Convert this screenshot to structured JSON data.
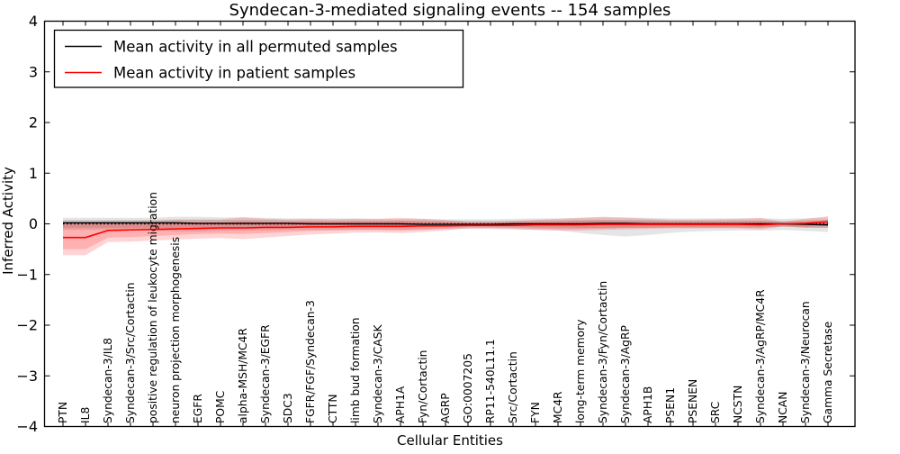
{
  "title": "Syndecan-3-mediated signaling events -- 154 samples",
  "axes": {
    "xlabel": "Cellular Entities",
    "ylabel": "Inferred Activity"
  },
  "legend": {
    "items": [
      {
        "label": "Mean activity in all permuted samples",
        "color": "#000000"
      },
      {
        "label": "Mean activity in patient samples",
        "color": "#ff0000"
      }
    ]
  },
  "colors": {
    "permuted_line": "#000000",
    "patient_line": "#ff0000",
    "permuted_band": "rgba(0,0,0,0.10)",
    "patient_band": "rgba(255,0,0,0.17)",
    "frame": "#000000",
    "background": "#ffffff"
  },
  "chart_data": {
    "type": "line",
    "title": "Syndecan-3-mediated signaling events -- 154 samples",
    "xlabel": "Cellular Entities",
    "ylabel": "Inferred Activity",
    "ylim": [
      -4,
      4
    ],
    "yticks": [
      -4,
      -3,
      -2,
      -1,
      0,
      1,
      2,
      3,
      4
    ],
    "grid": false,
    "legend_position": "upper left",
    "zero_line": {
      "value": 0,
      "style": "dotted",
      "color": "#000000"
    },
    "categories": [
      "PTN",
      "IL8",
      "Syndecan-3/IL8",
      "Syndecan-3/Src/Cortactin",
      "positive regulation of leukocyte migration",
      "neuron projection morphogenesis",
      "EGFR",
      "POMC",
      "alpha-MSH/MC4R",
      "Syndecan-3/EGFR",
      "SDC3",
      "FGFR/FGF/Syndecan-3",
      "CTTN",
      "limb bud formation",
      "Syndecan-3/CASK",
      "APH1A",
      "Fyn/Cortactin",
      "AGRP",
      "GO:0007205",
      "RP11-540L11.1",
      "Src/Cortactin",
      "FYN",
      "MC4R",
      "long-term memory",
      "Syndecan-3/Fyn/Cortactin",
      "Syndecan-3/AgRP",
      "APH1B",
      "PSEN1",
      "PSENEN",
      "SRC",
      "NCSTN",
      "Syndecan-3/AgRP/MC4R",
      "NCAN",
      "Syndecan-3/Neurocan",
      "Gamma Secretase"
    ],
    "series": [
      {
        "name": "Mean activity in all permuted samples",
        "color": "#000000",
        "values": [
          0.02,
          0.02,
          0.02,
          0.02,
          0.02,
          0.02,
          0.01,
          0.01,
          0.01,
          0.01,
          0.01,
          0.0,
          0.0,
          0.0,
          0.0,
          0.0,
          -0.01,
          -0.01,
          -0.01,
          -0.01,
          0.0,
          0.0,
          0.0,
          0.0,
          0.01,
          0.01,
          0.0,
          0.0,
          0.0,
          0.0,
          0.0,
          0.0,
          0.0,
          -0.01,
          -0.02
        ]
      },
      {
        "name": "Mean activity in patient samples",
        "color": "#ff0000",
        "values": [
          -0.27,
          -0.27,
          -0.13,
          -0.12,
          -0.11,
          -0.1,
          -0.09,
          -0.08,
          -0.08,
          -0.07,
          -0.07,
          -0.06,
          -0.06,
          -0.05,
          -0.05,
          -0.05,
          -0.04,
          -0.04,
          -0.03,
          -0.03,
          -0.03,
          -0.02,
          -0.02,
          -0.02,
          -0.01,
          -0.01,
          -0.01,
          -0.01,
          -0.01,
          -0.01,
          -0.01,
          -0.02,
          0.0,
          0.01,
          0.04
        ]
      }
    ],
    "bands": [
      {
        "name": "permuted-outer-band",
        "color": "rgba(0,0,0,0.10)",
        "upper": [
          0.12,
          0.12,
          0.12,
          0.12,
          0.12,
          0.14,
          0.14,
          0.13,
          0.13,
          0.12,
          0.11,
          0.11,
          0.11,
          0.11,
          0.1,
          0.1,
          0.1,
          0.09,
          0.09,
          0.09,
          0.1,
          0.11,
          0.11,
          0.12,
          0.13,
          0.13,
          0.12,
          0.11,
          0.11,
          0.11,
          0.11,
          0.11,
          0.1,
          0.11,
          0.13
        ],
        "lower": [
          -0.12,
          -0.12,
          -0.12,
          -0.12,
          -0.13,
          -0.15,
          -0.15,
          -0.14,
          -0.13,
          -0.13,
          -0.12,
          -0.12,
          -0.12,
          -0.12,
          -0.12,
          -0.12,
          -0.11,
          -0.1,
          -0.1,
          -0.1,
          -0.11,
          -0.12,
          -0.13,
          -0.18,
          -0.22,
          -0.25,
          -0.22,
          -0.18,
          -0.15,
          -0.14,
          -0.13,
          -0.13,
          -0.12,
          -0.14,
          -0.16
        ]
      },
      {
        "name": "permuted-inner-band",
        "color": "rgba(0,0,0,0.10)",
        "upper": [
          0.08,
          0.08,
          0.08,
          0.08,
          0.08,
          0.09,
          0.09,
          0.08,
          0.08,
          0.08,
          0.07,
          0.07,
          0.07,
          0.07,
          0.07,
          0.07,
          0.07,
          0.06,
          0.06,
          0.06,
          0.06,
          0.07,
          0.07,
          0.08,
          0.08,
          0.08,
          0.08,
          0.07,
          0.07,
          0.07,
          0.07,
          0.07,
          0.06,
          0.07,
          0.08
        ],
        "lower": [
          -0.08,
          -0.08,
          -0.08,
          -0.08,
          -0.08,
          -0.09,
          -0.09,
          -0.08,
          -0.08,
          -0.08,
          -0.07,
          -0.07,
          -0.07,
          -0.07,
          -0.07,
          -0.07,
          -0.07,
          -0.06,
          -0.06,
          -0.06,
          -0.06,
          -0.07,
          -0.07,
          -0.08,
          -0.08,
          -0.08,
          -0.08,
          -0.07,
          -0.07,
          -0.07,
          -0.07,
          -0.07,
          -0.06,
          -0.07,
          -0.08
        ]
      },
      {
        "name": "patient-outer-band",
        "color": "rgba(255,0,0,0.17)",
        "upper": [
          0.04,
          0.04,
          0.05,
          0.05,
          0.06,
          0.08,
          0.08,
          0.09,
          0.13,
          0.1,
          0.09,
          0.1,
          0.09,
          0.1,
          0.1,
          0.12,
          0.1,
          0.08,
          0.04,
          0.04,
          0.06,
          0.08,
          0.1,
          0.12,
          0.14,
          0.12,
          0.1,
          0.08,
          0.08,
          0.09,
          0.1,
          0.12,
          0.04,
          0.1,
          0.15
        ],
        "lower": [
          -0.62,
          -0.62,
          -0.36,
          -0.35,
          -0.33,
          -0.31,
          -0.29,
          -0.28,
          -0.3,
          -0.27,
          -0.24,
          -0.21,
          -0.19,
          -0.17,
          -0.17,
          -0.18,
          -0.16,
          -0.13,
          -0.09,
          -0.09,
          -0.1,
          -0.12,
          -0.13,
          -0.13,
          -0.12,
          -0.11,
          -0.1,
          -0.09,
          -0.09,
          -0.09,
          -0.09,
          -0.11,
          -0.05,
          -0.08,
          -0.08
        ]
      },
      {
        "name": "patient-inner-band",
        "color": "rgba(255,0,0,0.17)",
        "upper": [
          0.0,
          0.0,
          0.02,
          0.02,
          0.02,
          0.03,
          0.03,
          0.03,
          0.05,
          0.04,
          0.04,
          0.05,
          0.04,
          0.05,
          0.05,
          0.06,
          0.05,
          0.04,
          0.02,
          0.02,
          0.03,
          0.04,
          0.05,
          0.06,
          0.07,
          0.06,
          0.05,
          0.04,
          0.04,
          0.04,
          0.05,
          0.06,
          0.02,
          0.05,
          0.08
        ],
        "lower": [
          -0.5,
          -0.5,
          -0.27,
          -0.26,
          -0.24,
          -0.22,
          -0.2,
          -0.19,
          -0.2,
          -0.18,
          -0.16,
          -0.14,
          -0.13,
          -0.12,
          -0.12,
          -0.13,
          -0.12,
          -0.1,
          -0.07,
          -0.07,
          -0.08,
          -0.09,
          -0.1,
          -0.1,
          -0.09,
          -0.08,
          -0.07,
          -0.07,
          -0.07,
          -0.07,
          -0.07,
          -0.08,
          -0.04,
          -0.06,
          -0.04
        ]
      }
    ]
  }
}
